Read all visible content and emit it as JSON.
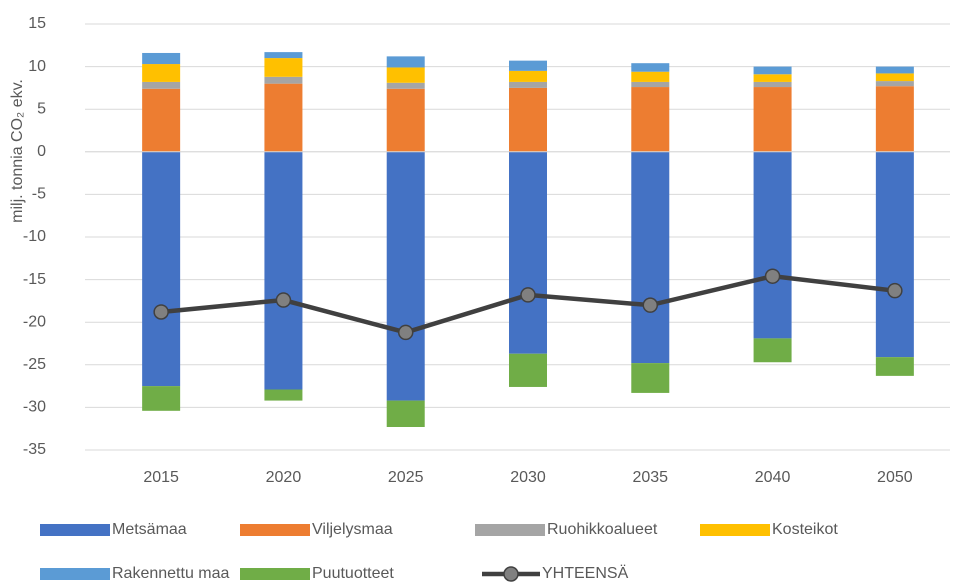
{
  "chart_data": {
    "type": "bar",
    "stacked": true,
    "ylabel": "milj. tonnia CO₂ ekv.",
    "categories": [
      "2015",
      "2020",
      "2025",
      "2030",
      "2035",
      "2040",
      "2050"
    ],
    "series": [
      {
        "name": "Metsämaa",
        "color": "#4472c4",
        "values": [
          -27.5,
          -27.9,
          -29.2,
          -23.7,
          -24.8,
          -21.9,
          -24.1
        ]
      },
      {
        "name": "Viljelysmaa",
        "color": "#ed7d31",
        "values": [
          7.4,
          8.0,
          7.4,
          7.5,
          7.6,
          7.6,
          7.7
        ]
      },
      {
        "name": "Ruohikkoalueet",
        "color": "#a5a5a5",
        "values": [
          0.8,
          0.8,
          0.7,
          0.7,
          0.6,
          0.6,
          0.6
        ]
      },
      {
        "name": "Kosteikot",
        "color": "#ffc000",
        "values": [
          2.1,
          2.2,
          1.8,
          1.3,
          1.2,
          0.9,
          0.9
        ]
      },
      {
        "name": "Rakennettu maa",
        "color": "#5b9bd5",
        "values": [
          1.3,
          0.7,
          1.3,
          1.2,
          1.0,
          0.9,
          0.8
        ]
      },
      {
        "name": "Puutuotteet",
        "color": "#70ad47",
        "values": [
          -2.9,
          -1.3,
          -3.1,
          -3.9,
          -3.5,
          -2.8,
          -2.2
        ]
      },
      {
        "name": "YHTEENSÄ",
        "type": "line",
        "color": "#404040",
        "marker_color": "#808080",
        "values": [
          -18.8,
          -17.4,
          -21.2,
          -16.8,
          -18.0,
          -14.6,
          -16.3
        ]
      }
    ],
    "ylim": [
      -35,
      15
    ],
    "yticks": [
      -35,
      -30,
      -25,
      -20,
      -15,
      -10,
      -5,
      0,
      5,
      10,
      15
    ],
    "grid": true,
    "legend": "bottom"
  }
}
